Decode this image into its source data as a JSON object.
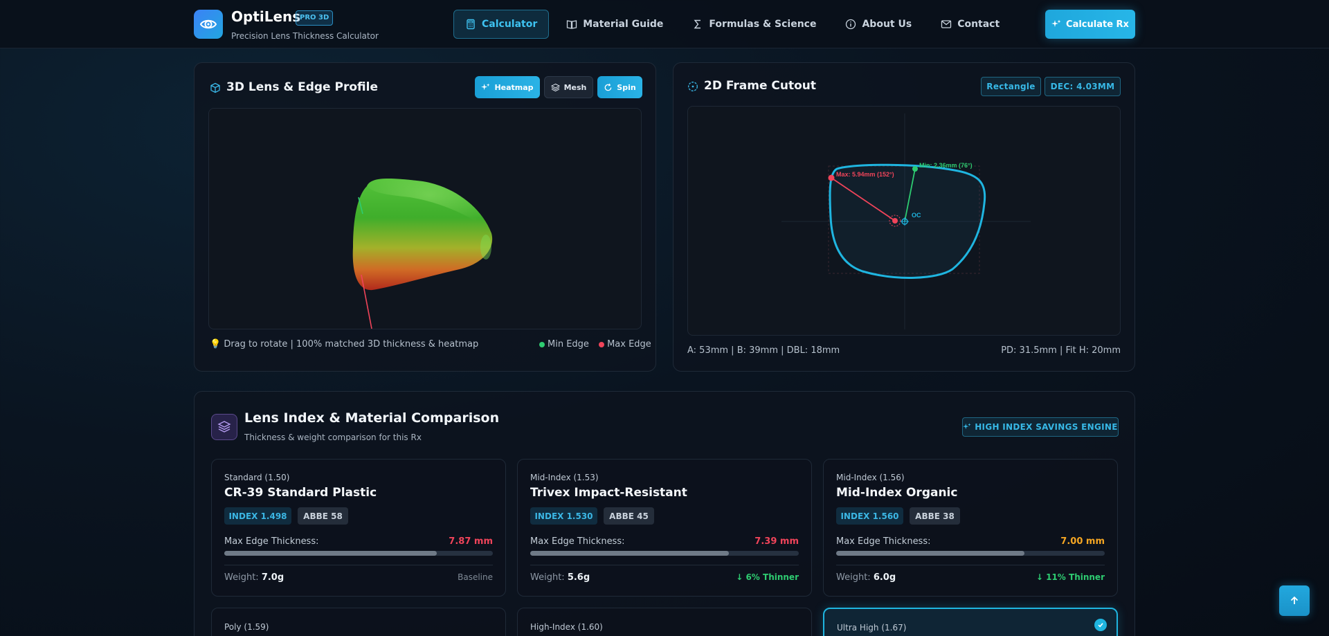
{
  "header": {
    "brand": "OptiLens",
    "badge": "PRO 3D",
    "subtitle": "Precision Lens Thickness Calculator",
    "nav": [
      {
        "label": "Calculator",
        "icon": "calculator-icon"
      },
      {
        "label": "Material Guide",
        "icon": "book-icon"
      },
      {
        "label": "Formulas & Science",
        "icon": "sigma-icon"
      },
      {
        "label": "About Us",
        "icon": "info-icon"
      },
      {
        "label": "Contact",
        "icon": "mail-icon"
      }
    ],
    "cta_label": "Calculate Rx"
  },
  "lens3d": {
    "title": "3D Lens & Edge Profile",
    "buttons": {
      "heatmap": "Heatmap",
      "mesh": "Mesh",
      "spin": "Spin"
    },
    "hint": "Drag to rotate | 100% matched 3D thickness & heatmap",
    "legend_min": "Min Edge",
    "legend_max": "Max Edge"
  },
  "frame2d": {
    "title": "2D Frame Cutout",
    "shape_tag": "Rectangle",
    "dec_tag": "DEC: 4.03MM",
    "max_label": "Max: 5.94mm (152°)",
    "min_label": "Min: 2.36mm (76°)",
    "oc_label": "OC",
    "dims": "A: 53mm | B: 39mm | DBL: 18mm",
    "pd": "PD: 31.5mm | Fit H: 20mm"
  },
  "comparison": {
    "title": "Lens Index & Material Comparison",
    "subtitle": "Thickness & weight comparison for this Rx",
    "engine_tag": "HIGH INDEX SAVINGS ENGINE",
    "thickness_label": "Max Edge Thickness:",
    "weight_label": "Weight:",
    "cards": [
      {
        "category": "Standard (1.50)",
        "name": "CR-39 Standard Plastic",
        "index": "INDEX 1.498",
        "abbe": "ABBE 58",
        "thickness": "7.87 mm",
        "thickness_fraction": 0.79,
        "thickness_color": "#f0445a",
        "weight": "7.0g",
        "delta": "Baseline",
        "delta_color": "#7f8a96"
      },
      {
        "category": "Mid-Index (1.53)",
        "name": "Trivex Impact-Resistant",
        "index": "INDEX 1.530",
        "abbe": "ABBE 45",
        "thickness": "7.39 mm",
        "thickness_fraction": 0.74,
        "thickness_color": "#f0445a",
        "weight": "5.6g",
        "delta": "↓ 6% Thinner",
        "delta_color": "#2ecc71"
      },
      {
        "category": "Mid-Index (1.56)",
        "name": "Mid-Index Organic",
        "index": "INDEX 1.560",
        "abbe": "ABBE 38",
        "thickness": "7.00 mm",
        "thickness_fraction": 0.7,
        "thickness_color": "#f5a623",
        "weight": "6.0g",
        "delta": "↓ 11% Thinner",
        "delta_color": "#2ecc71"
      },
      {
        "category": "Poly (1.59)"
      },
      {
        "category": "High-Index (1.60)"
      },
      {
        "category": "Ultra High (1.67)"
      }
    ]
  }
}
